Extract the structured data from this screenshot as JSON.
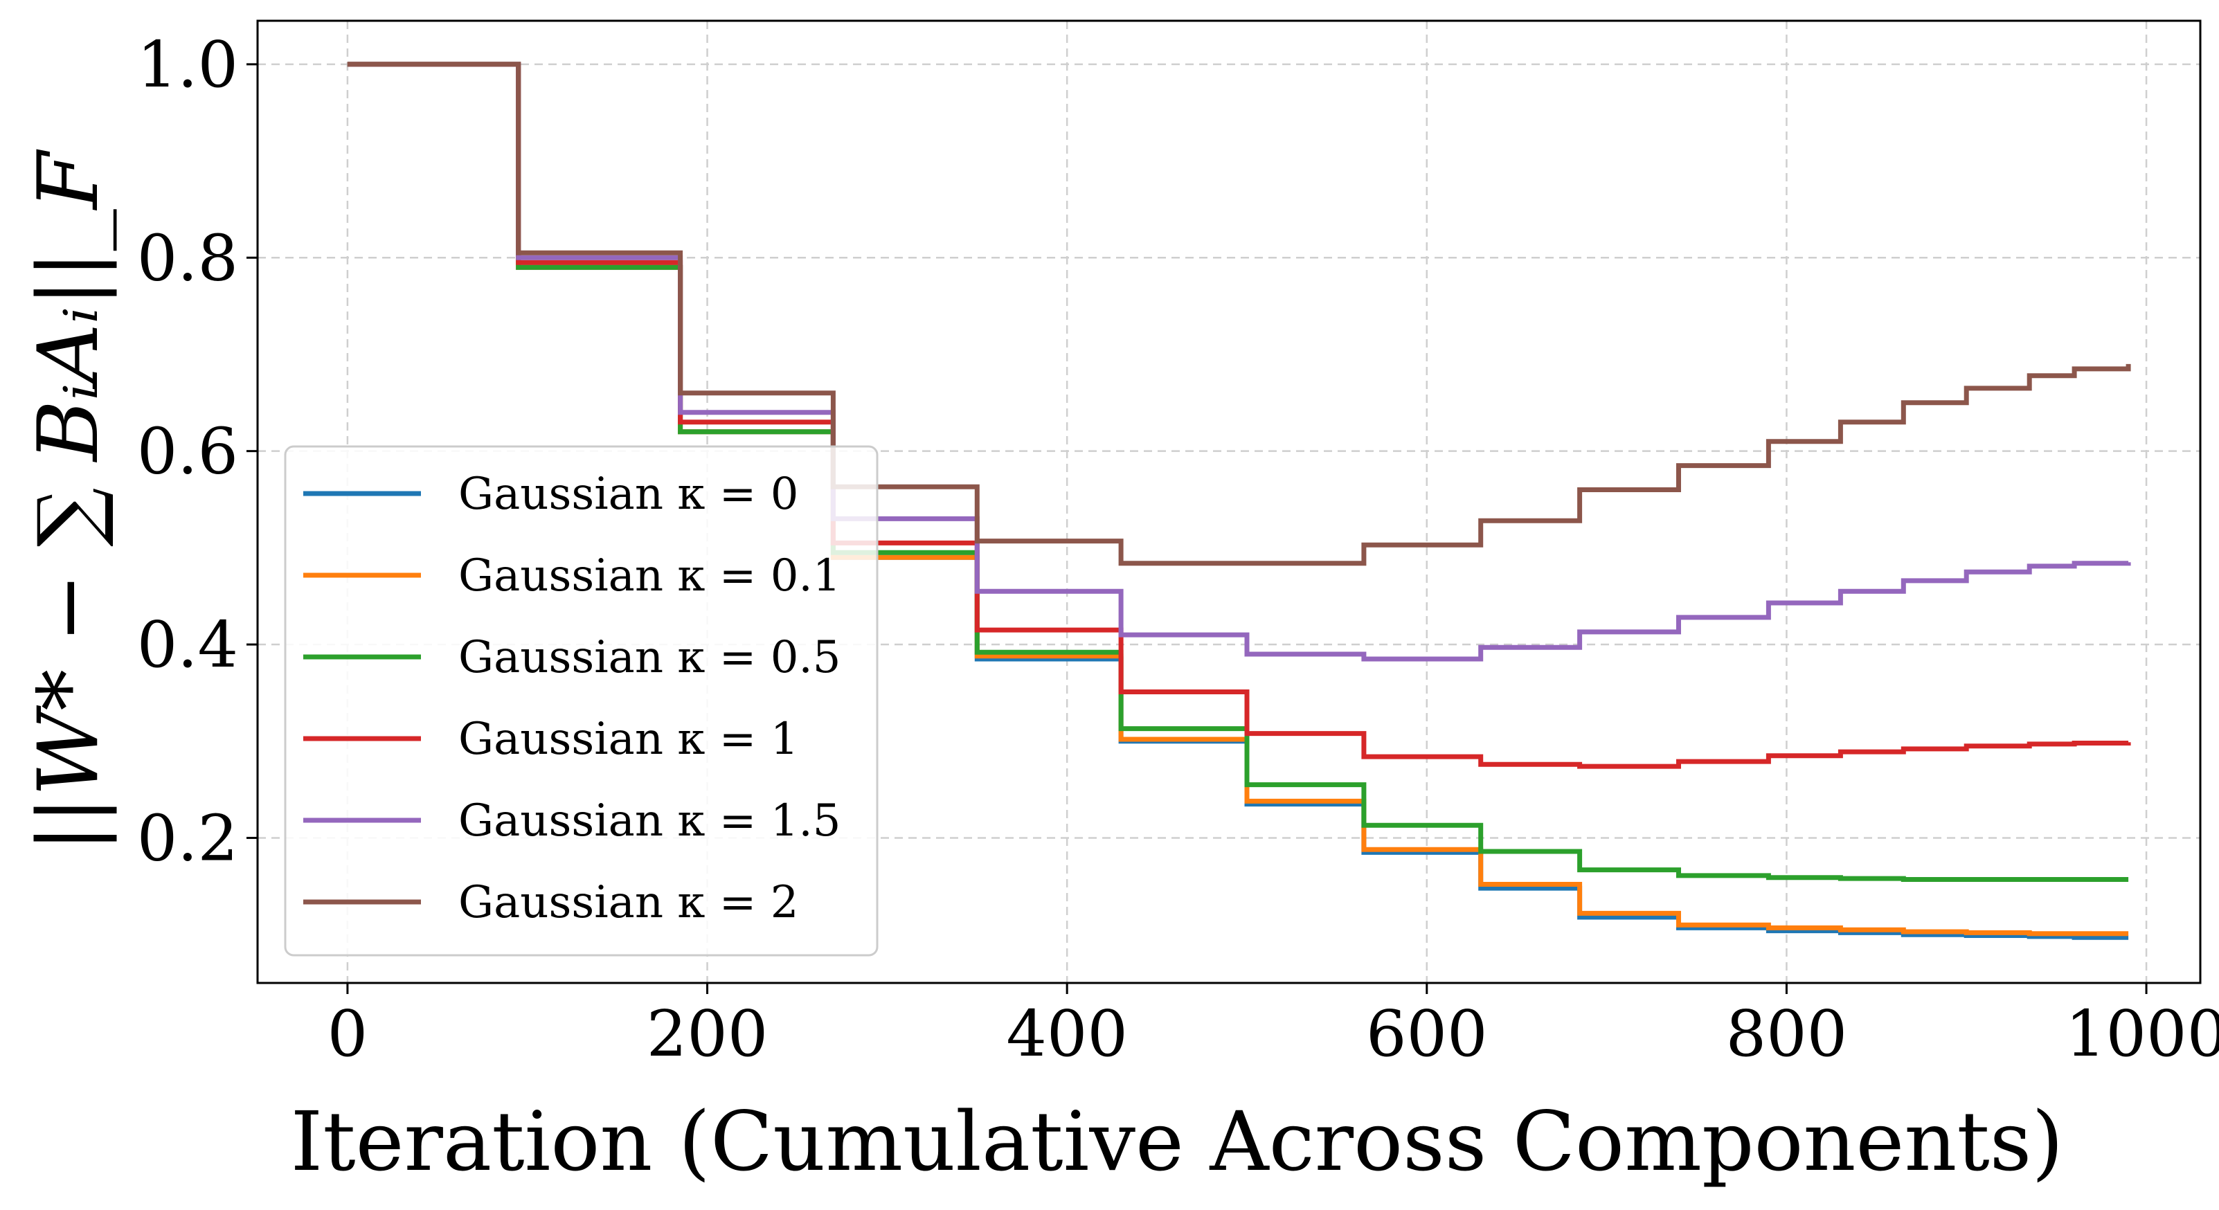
{
  "chart_data": {
    "type": "line",
    "title": "",
    "xlabel": "Iteration (Cumulative Across Components)",
    "ylabel": "||W* − ∑ BᵢAᵢ||_F",
    "xlim": [
      -50,
      1030
    ],
    "ylim": [
      0.05,
      1.045
    ],
    "xticks": [
      0,
      200,
      400,
      600,
      800,
      1000
    ],
    "xtick_labels": [
      "0",
      "200",
      "400",
      "600",
      "800",
      "1000"
    ],
    "yticks": [
      0.2,
      0.4,
      0.6,
      0.8,
      1.0
    ],
    "ytick_labels": [
      "0.2",
      "0.4",
      "0.6",
      "0.8",
      "1.0"
    ],
    "grid": true,
    "legend_position": "center-left",
    "x": [
      0,
      95,
      185,
      270,
      350,
      430,
      500,
      565,
      630,
      685,
      740,
      790,
      830,
      865,
      900,
      935,
      960,
      990
    ],
    "series": [
      {
        "name": "Gaussian κ = 0",
        "color": "#1f77b4",
        "values": [
          1.0,
          0.79,
          0.62,
          0.49,
          0.385,
          0.3,
          0.235,
          0.185,
          0.148,
          0.118,
          0.107,
          0.104,
          0.102,
          0.1,
          0.099,
          0.098,
          0.097,
          0.097
        ]
      },
      {
        "name": "Gaussian κ = 0.1",
        "color": "#ff7f0e",
        "values": [
          1.0,
          0.79,
          0.62,
          0.49,
          0.388,
          0.302,
          0.238,
          0.188,
          0.152,
          0.122,
          0.11,
          0.107,
          0.105,
          0.103,
          0.102,
          0.101,
          0.101,
          0.101
        ]
      },
      {
        "name": "Gaussian κ = 0.5",
        "color": "#2ca02c",
        "values": [
          1.0,
          0.79,
          0.62,
          0.495,
          0.392,
          0.313,
          0.255,
          0.213,
          0.186,
          0.167,
          0.161,
          0.159,
          0.158,
          0.157,
          0.157,
          0.157,
          0.157,
          0.157
        ]
      },
      {
        "name": "Gaussian κ = 1",
        "color": "#d62728",
        "values": [
          1.0,
          0.795,
          0.63,
          0.505,
          0.415,
          0.351,
          0.308,
          0.284,
          0.276,
          0.274,
          0.279,
          0.285,
          0.289,
          0.292,
          0.295,
          0.297,
          0.298,
          0.299
        ]
      },
      {
        "name": "Gaussian κ = 1.5",
        "color": "#9467bd",
        "values": [
          1.0,
          0.8,
          0.64,
          0.53,
          0.455,
          0.41,
          0.39,
          0.385,
          0.397,
          0.413,
          0.428,
          0.443,
          0.455,
          0.466,
          0.475,
          0.481,
          0.484,
          0.485
        ]
      },
      {
        "name": "Gaussian κ = 2",
        "color": "#8c564b",
        "values": [
          1.0,
          0.805,
          0.66,
          0.563,
          0.507,
          0.484,
          0.484,
          0.503,
          0.528,
          0.56,
          0.585,
          0.61,
          0.63,
          0.65,
          0.665,
          0.678,
          0.685,
          0.69
        ]
      }
    ]
  }
}
